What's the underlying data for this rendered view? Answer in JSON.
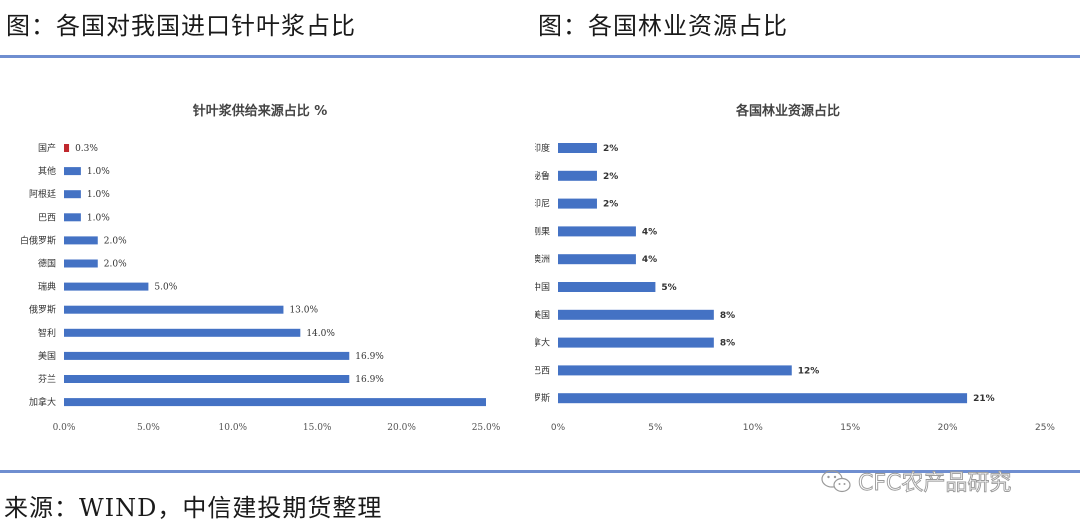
{
  "figures": {
    "left_title": "图：各国对我国进口针叶浆占比",
    "right_title": "图：各国林业资源占比"
  },
  "source": "来源：WIND，中信建投期货整理",
  "watermark": "CFC农产品研究",
  "chart_data": [
    {
      "type": "bar",
      "orientation": "horizontal",
      "title": "针叶浆供给来源占比 %",
      "categories": [
        "国产",
        "其他",
        "阿根廷",
        "巴西",
        "白俄罗斯",
        "德国",
        "瑞典",
        "俄罗斯",
        "智利",
        "美国",
        "芬兰",
        "加拿大"
      ],
      "values": [
        0.3,
        1.0,
        1.0,
        1.0,
        2.0,
        2.0,
        5.0,
        13.0,
        14.0,
        16.9,
        16.9,
        25.0
      ],
      "value_labels": [
        "0.3%",
        "1.0%",
        "1.0%",
        "1.0%",
        "2.0%",
        "2.0%",
        "5.0%",
        "13.0%",
        "14.0%",
        "16.9%",
        "16.9%",
        ""
      ],
      "bar_colors": [
        "#c0282d",
        "#4472c4",
        "#4472c4",
        "#4472c4",
        "#4472c4",
        "#4472c4",
        "#4472c4",
        "#4472c4",
        "#4472c4",
        "#4472c4",
        "#4472c4",
        "#4472c4"
      ],
      "xticks": [
        0,
        5,
        10,
        15,
        20,
        25
      ],
      "xtick_labels": [
        "0.0%",
        "5.0%",
        "10.0%",
        "15.0%",
        "20.0%",
        "25.0%"
      ],
      "xlim": [
        0,
        25
      ],
      "grid": false
    },
    {
      "type": "bar",
      "orientation": "horizontal",
      "title": "各国林业资源占比",
      "categories": [
        "印度",
        "秘鲁",
        "印尼",
        "刚果",
        "澳洲",
        "中国",
        "美国",
        "加拿大",
        "巴西",
        "俄罗斯"
      ],
      "values": [
        2,
        2,
        2,
        4,
        4,
        5,
        8,
        8,
        12,
        21
      ],
      "value_labels": [
        "2%",
        "2%",
        "2%",
        "4%",
        "4%",
        "5%",
        "8%",
        "8%",
        "12%",
        "21%"
      ],
      "bar_colors": [
        "#4472c4"
      ],
      "xticks": [
        0,
        5,
        10,
        15,
        20,
        25
      ],
      "xtick_labels": [
        "0%",
        "5%",
        "10%",
        "15%",
        "20%",
        "25%"
      ],
      "xlim": [
        0,
        25
      ],
      "grid": false
    }
  ]
}
